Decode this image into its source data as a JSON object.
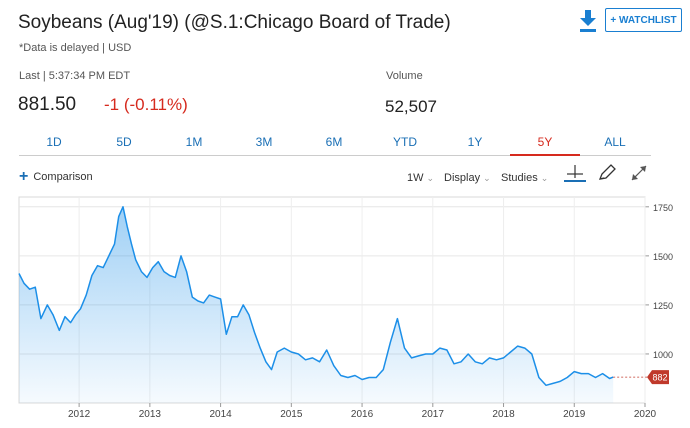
{
  "header": {
    "title": "Soybeans (Aug'19) (@S.1:Chicago Board of Trade)",
    "delayed_note": "*Data is delayed | USD",
    "watchlist_label": "+ WATCHLIST"
  },
  "quote": {
    "last_label": "Last | 5:37:34 PM EDT",
    "price": "881.50",
    "change": "-1 (-0.11%)",
    "volume_label": "Volume",
    "volume": "52,507"
  },
  "tabs": [
    {
      "label": "1D",
      "active": false
    },
    {
      "label": "5D",
      "active": false
    },
    {
      "label": "1M",
      "active": false
    },
    {
      "label": "3M",
      "active": false
    },
    {
      "label": "6M",
      "active": false
    },
    {
      "label": "YTD",
      "active": false
    },
    {
      "label": "1Y",
      "active": false
    },
    {
      "label": "5Y",
      "active": true
    },
    {
      "label": "ALL",
      "active": false
    }
  ],
  "toolbar": {
    "comparison_label": "Comparison",
    "interval_label": "1W",
    "display_label": "Display",
    "studies_label": "Studies"
  },
  "colors": {
    "accent": "#1a6fb5",
    "negative": "#d62a1e",
    "series": "#1c8fe8",
    "price_tag": "#c0392b"
  },
  "chart_data": {
    "type": "area",
    "x_tick_labels": [
      "2012",
      "2013",
      "2014",
      "2015",
      "2016",
      "2017",
      "2018",
      "2019",
      "2020"
    ],
    "y_tick_labels": [
      "1750",
      "1500",
      "1250",
      "1000"
    ],
    "ylim": [
      750,
      1800
    ],
    "xlim": [
      2011.15,
      2020.0
    ],
    "current_value_label": "882",
    "grid": true,
    "x": [
      2011.15,
      2011.22,
      2011.3,
      2011.38,
      2011.46,
      2011.55,
      2011.63,
      2011.72,
      2011.8,
      2011.88,
      2011.95,
      2012.02,
      2012.1,
      2012.18,
      2012.26,
      2012.34,
      2012.42,
      2012.5,
      2012.56,
      2012.62,
      2012.68,
      2012.74,
      2012.8,
      2012.88,
      2012.96,
      2013.04,
      2013.12,
      2013.2,
      2013.28,
      2013.36,
      2013.44,
      2013.52,
      2013.6,
      2013.68,
      2013.76,
      2013.84,
      2013.92,
      2014.0,
      2014.08,
      2014.16,
      2014.24,
      2014.32,
      2014.4,
      2014.48,
      2014.56,
      2014.64,
      2014.72,
      2014.8,
      2014.9,
      2015.0,
      2015.1,
      2015.2,
      2015.3,
      2015.4,
      2015.5,
      2015.6,
      2015.7,
      2015.8,
      2015.9,
      2016.0,
      2016.1,
      2016.2,
      2016.3,
      2016.4,
      2016.5,
      2016.6,
      2016.7,
      2016.8,
      2016.9,
      2017.0,
      2017.1,
      2017.2,
      2017.3,
      2017.4,
      2017.5,
      2017.6,
      2017.7,
      2017.8,
      2017.9,
      2018.0,
      2018.1,
      2018.2,
      2018.3,
      2018.4,
      2018.5,
      2018.6,
      2018.7,
      2018.8,
      2018.9,
      2019.0,
      2019.1,
      2019.2,
      2019.3,
      2019.4,
      2019.5,
      2019.55
    ],
    "values": [
      1410,
      1360,
      1330,
      1340,
      1180,
      1250,
      1200,
      1120,
      1190,
      1160,
      1200,
      1230,
      1300,
      1400,
      1450,
      1440,
      1500,
      1560,
      1700,
      1750,
      1650,
      1560,
      1480,
      1420,
      1390,
      1440,
      1470,
      1420,
      1400,
      1390,
      1500,
      1420,
      1290,
      1270,
      1260,
      1300,
      1290,
      1280,
      1100,
      1190,
      1190,
      1250,
      1200,
      1110,
      1030,
      960,
      920,
      1010,
      1030,
      1010,
      1000,
      970,
      980,
      960,
      1020,
      940,
      890,
      880,
      890,
      870,
      880,
      880,
      920,
      1060,
      1180,
      1030,
      980,
      990,
      1000,
      1000,
      1030,
      1020,
      950,
      960,
      1000,
      960,
      950,
      980,
      970,
      980,
      1010,
      1040,
      1030,
      1000,
      880,
      840,
      850,
      860,
      880,
      910,
      900,
      900,
      880,
      900,
      875,
      882
    ]
  }
}
